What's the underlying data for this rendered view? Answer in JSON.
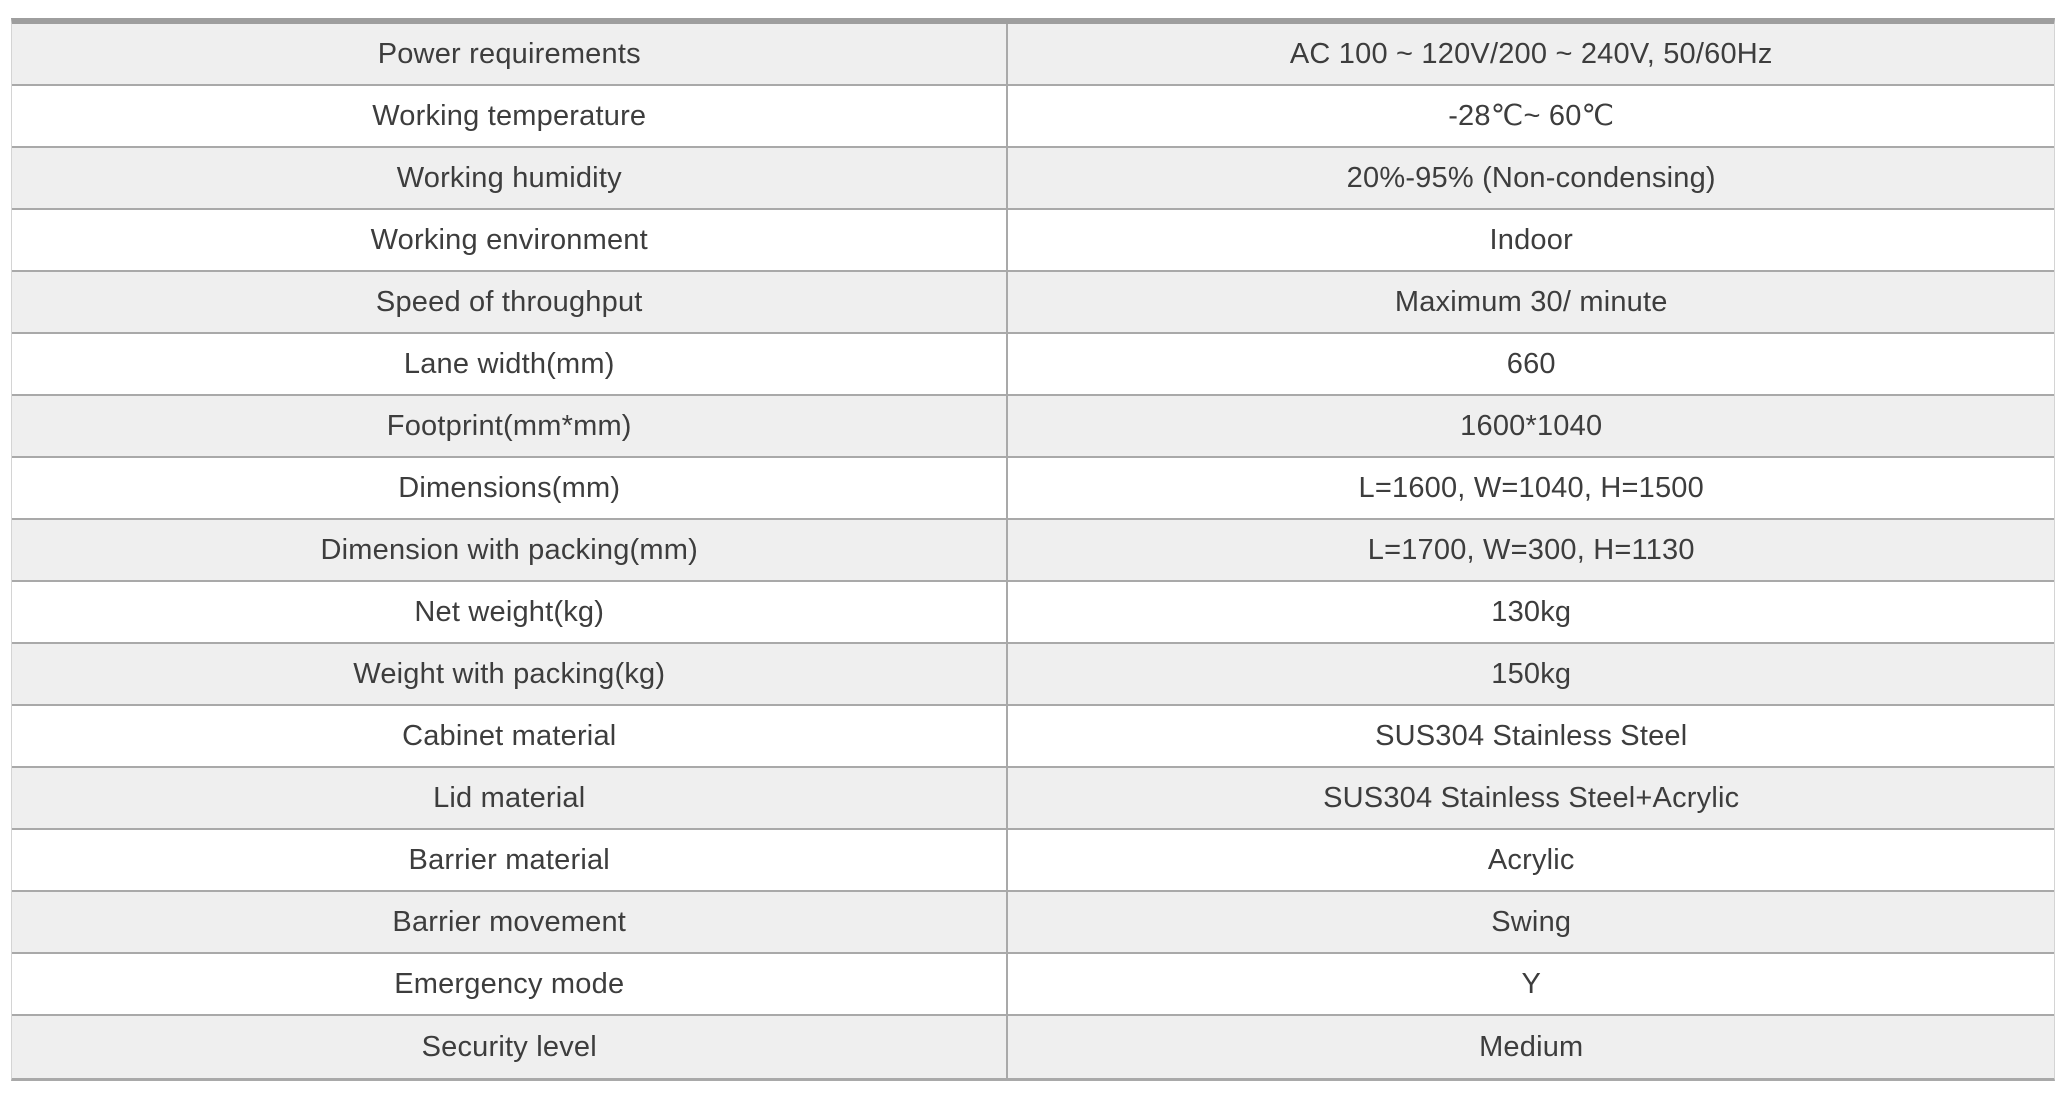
{
  "colors": {
    "row_alt_bg": "#efefef",
    "row_bg": "#ffffff",
    "grid_line": "#a9a9a9",
    "top_border": "#9e9e9e",
    "text": "#3d3d3d"
  },
  "spec_table": {
    "rows": [
      {
        "label": "Power requirements",
        "value": "AC 100 ~ 120V/200 ~ 240V, 50/60Hz"
      },
      {
        "label": "Working temperature",
        "value": "-28℃~ 60℃"
      },
      {
        "label": "Working humidity",
        "value": "20%-95% (Non-condensing)"
      },
      {
        "label": "Working environment",
        "value": "Indoor"
      },
      {
        "label": "Speed of throughput",
        "value": "Maximum 30/ minute"
      },
      {
        "label": "Lane width(mm)",
        "value": "660"
      },
      {
        "label": "Footprint(mm*mm)",
        "value": "1600*1040"
      },
      {
        "label": "Dimensions(mm)",
        "value": "L=1600, W=1040, H=1500"
      },
      {
        "label": "Dimension with packing(mm)",
        "value": "L=1700, W=300, H=1130"
      },
      {
        "label": "Net weight(kg)",
        "value": "130kg"
      },
      {
        "label": "Weight with packing(kg)",
        "value": "150kg"
      },
      {
        "label": "Cabinet material",
        "value": "SUS304 Stainless Steel"
      },
      {
        "label": "Lid material",
        "value": "SUS304 Stainless Steel+Acrylic"
      },
      {
        "label": "Barrier material",
        "value": "Acrylic"
      },
      {
        "label": "Barrier movement",
        "value": "Swing"
      },
      {
        "label": "Emergency mode",
        "value": "Y"
      },
      {
        "label": "Security level",
        "value": "Medium"
      }
    ]
  }
}
